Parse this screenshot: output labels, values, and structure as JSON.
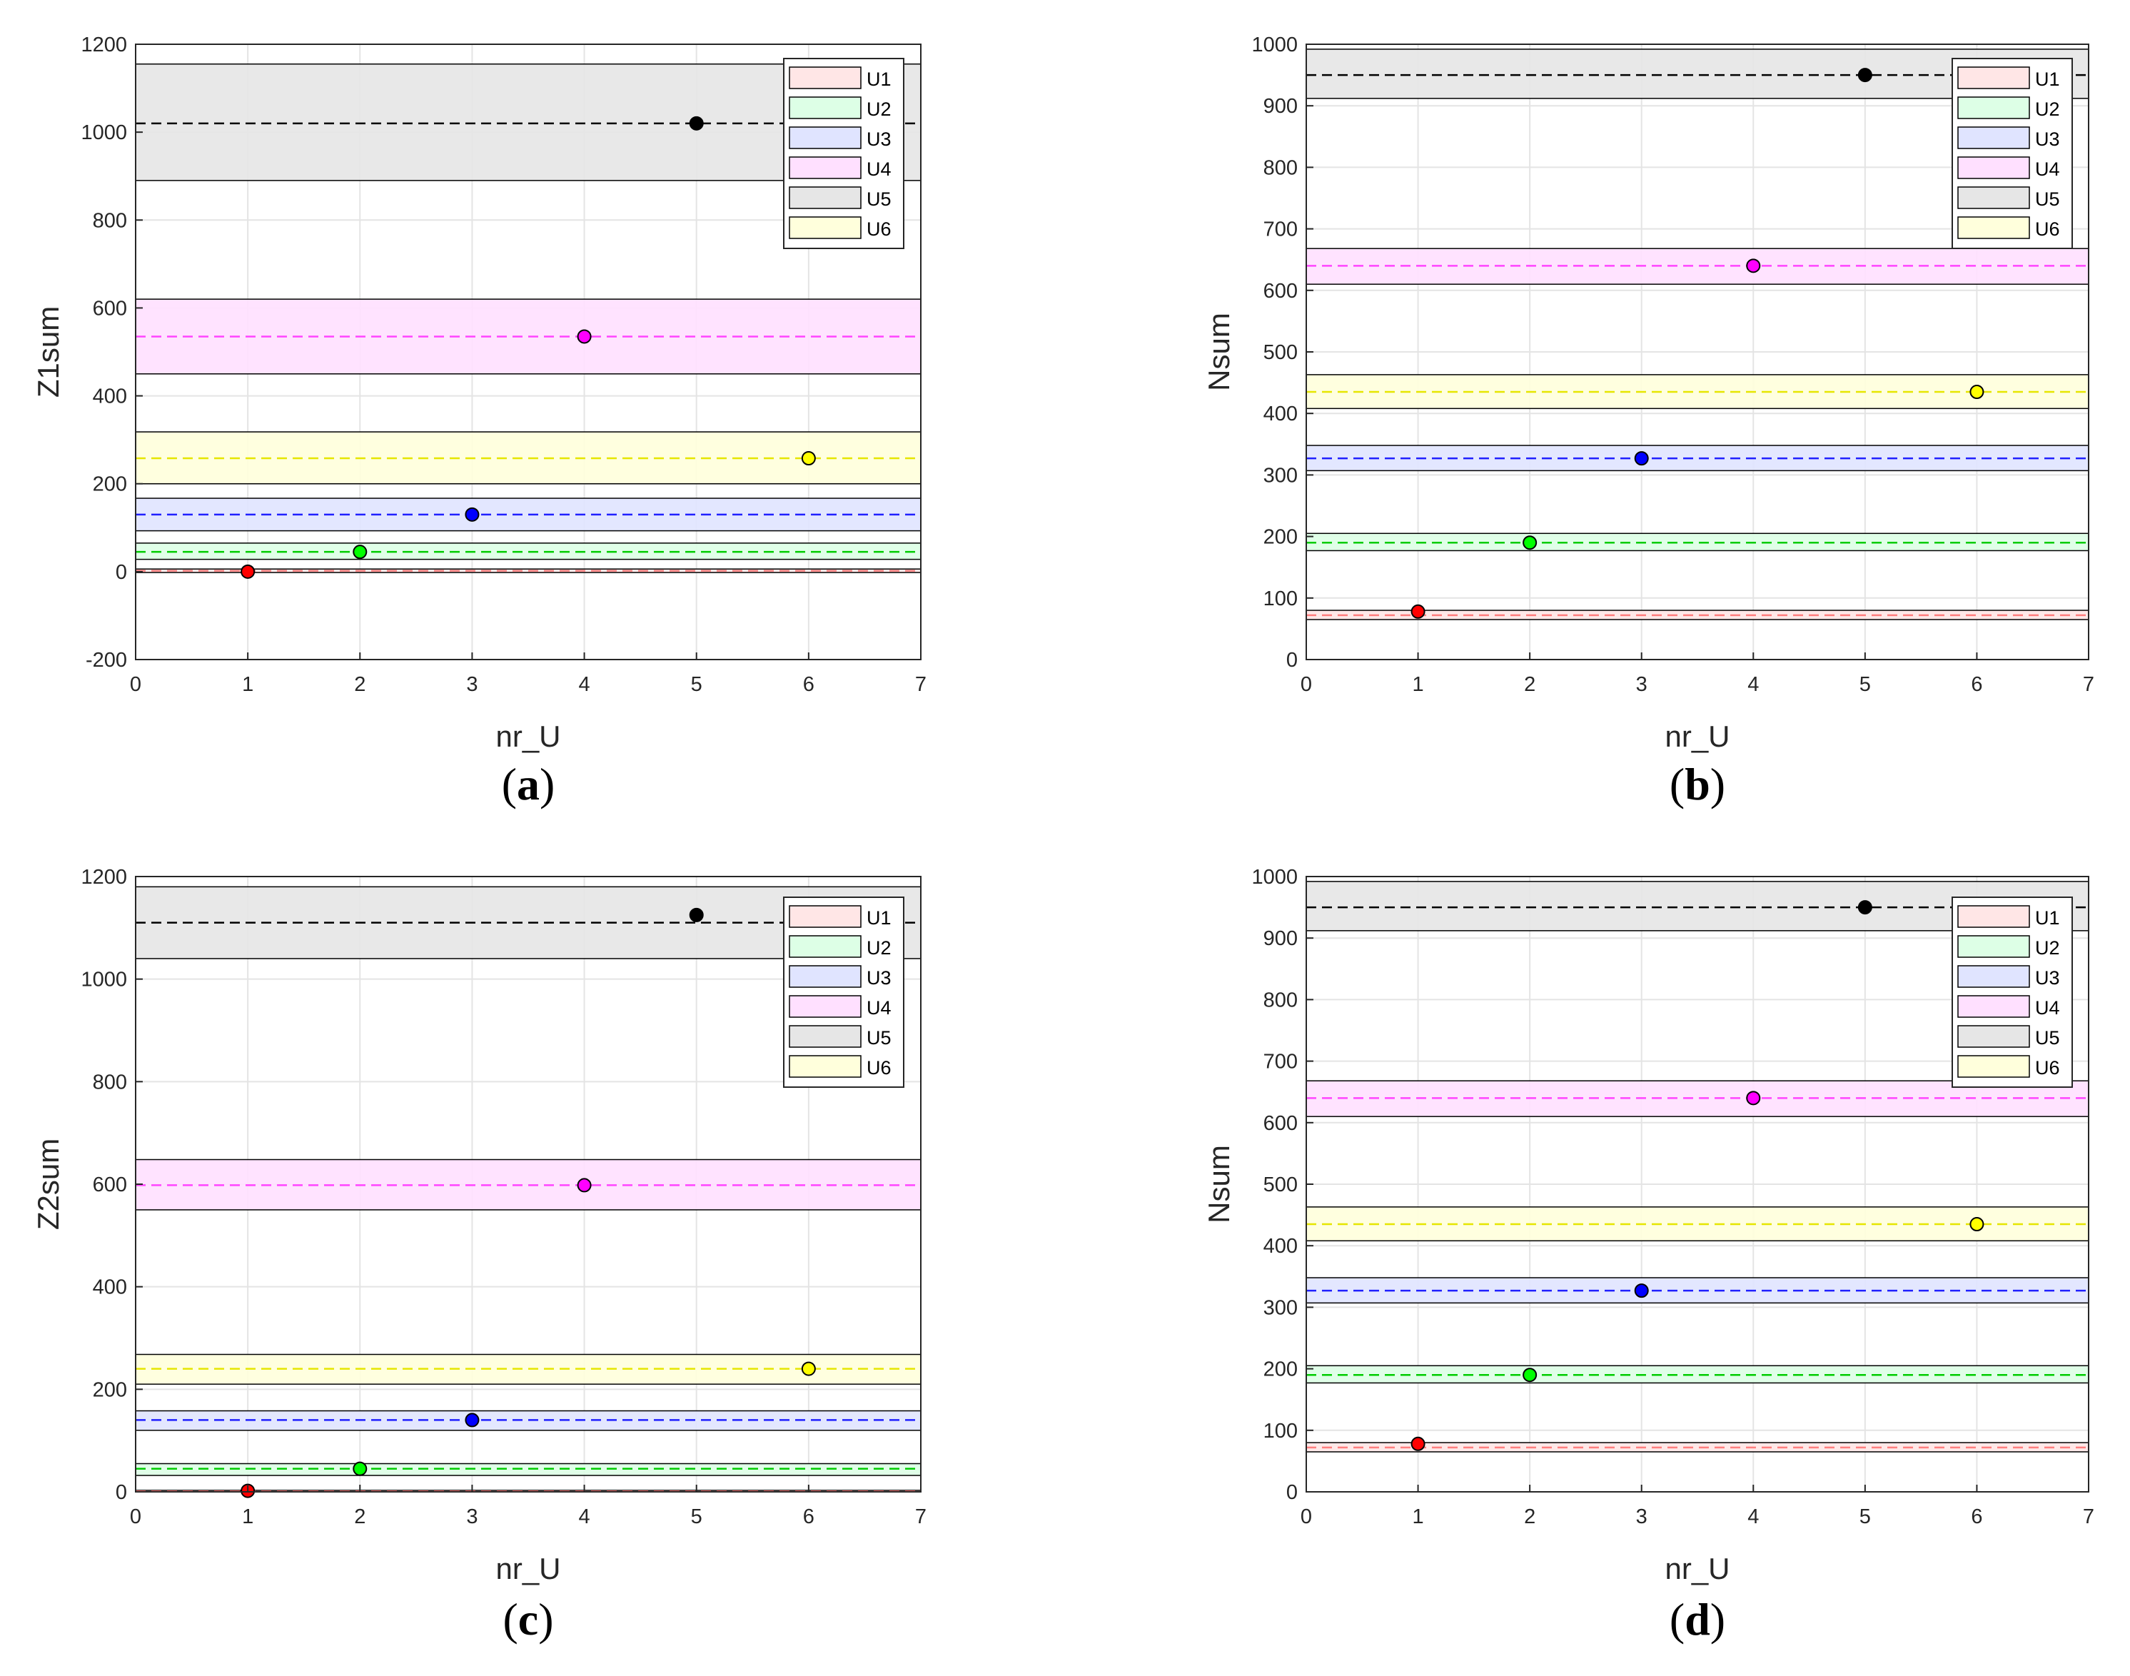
{
  "colors": {
    "U1": {
      "fill": "#ffe6e6",
      "line": "#ff7f7f",
      "marker": "#ff0000"
    },
    "U2": {
      "fill": "#ddffe6",
      "line": "#00cc00",
      "marker": "#00ff00"
    },
    "U3": {
      "fill": "#e0e4ff",
      "line": "#2020ff",
      "marker": "#0000ff"
    },
    "U4": {
      "fill": "#ffe0ff",
      "line": "#ff44ff",
      "marker": "#ff00ff"
    },
    "U5": {
      "fill": "#e6e6e6",
      "line": "#000000",
      "marker": "#000000"
    },
    "U6": {
      "fill": "#ffffdc",
      "line": "#e6e600",
      "marker": "#ffff00"
    }
  },
  "chart_data": [
    {
      "panel": "a",
      "type": "scatter",
      "xlabel": "nr_U",
      "ylabel": "Z1sum",
      "xlim": [
        0,
        7
      ],
      "ylim": [
        -200,
        1200
      ],
      "xticks": [
        0,
        1,
        2,
        3,
        4,
        5,
        6,
        7
      ],
      "yticks": [
        -200,
        0,
        200,
        400,
        600,
        800,
        1000,
        1200
      ],
      "grid": true,
      "legend_position": "top-right",
      "legend": [
        "U1",
        "U2",
        "U3",
        "U4",
        "U5",
        "U6"
      ],
      "series": [
        {
          "name": "U1",
          "x": 1,
          "y": 0,
          "mean": 2,
          "band": [
            -2,
            6
          ]
        },
        {
          "name": "U2",
          "x": 2,
          "y": 45,
          "mean": 45,
          "band": [
            28,
            65
          ]
        },
        {
          "name": "U3",
          "x": 3,
          "y": 130,
          "mean": 130,
          "band": [
            93,
            167
          ]
        },
        {
          "name": "U4",
          "x": 4,
          "y": 535,
          "mean": 535,
          "band": [
            450,
            620
          ]
        },
        {
          "name": "U5",
          "x": 5,
          "y": 1020,
          "mean": 1020,
          "band": [
            890,
            1155
          ]
        },
        {
          "name": "U6",
          "x": 6,
          "y": 258,
          "mean": 258,
          "band": [
            200,
            318
          ]
        }
      ]
    },
    {
      "panel": "b",
      "type": "scatter",
      "xlabel": "nr_U",
      "ylabel": "Nsum",
      "xlim": [
        0,
        7
      ],
      "ylim": [
        0,
        1000
      ],
      "xticks": [
        0,
        1,
        2,
        3,
        4,
        5,
        6,
        7
      ],
      "yticks": [
        0,
        100,
        200,
        300,
        400,
        500,
        600,
        700,
        800,
        900,
        1000
      ],
      "grid": true,
      "legend_position": "top-right",
      "legend": [
        "U1",
        "U2",
        "U3",
        "U4",
        "U5",
        "U6"
      ],
      "series": [
        {
          "name": "U1",
          "x": 1,
          "y": 78,
          "mean": 72,
          "band": [
            65,
            80
          ]
        },
        {
          "name": "U2",
          "x": 2,
          "y": 190,
          "mean": 190,
          "band": [
            177,
            205
          ]
        },
        {
          "name": "U3",
          "x": 3,
          "y": 327,
          "mean": 327,
          "band": [
            307,
            348
          ]
        },
        {
          "name": "U4",
          "x": 4,
          "y": 640,
          "mean": 640,
          "band": [
            610,
            668
          ]
        },
        {
          "name": "U5",
          "x": 5,
          "y": 950,
          "mean": 950,
          "band": [
            912,
            992
          ]
        },
        {
          "name": "U6",
          "x": 6,
          "y": 435,
          "mean": 435,
          "band": [
            408,
            463
          ]
        }
      ]
    },
    {
      "panel": "c",
      "type": "scatter",
      "xlabel": "nr_U",
      "ylabel": "Z2sum",
      "xlim": [
        0,
        7
      ],
      "ylim": [
        0,
        1200
      ],
      "xticks": [
        0,
        1,
        2,
        3,
        4,
        5,
        6,
        7
      ],
      "yticks": [
        0,
        200,
        400,
        600,
        800,
        1000,
        1200
      ],
      "grid": true,
      "legend_position": "top-right",
      "legend": [
        "U1",
        "U2",
        "U3",
        "U4",
        "U5",
        "U6"
      ],
      "series": [
        {
          "name": "U1",
          "x": 1,
          "y": 2,
          "mean": 1,
          "band": [
            0,
            3
          ]
        },
        {
          "name": "U2",
          "x": 2,
          "y": 45,
          "mean": 45,
          "band": [
            32,
            55
          ]
        },
        {
          "name": "U3",
          "x": 3,
          "y": 140,
          "mean": 140,
          "band": [
            120,
            158
          ]
        },
        {
          "name": "U4",
          "x": 4,
          "y": 598,
          "mean": 598,
          "band": [
            550,
            648
          ]
        },
        {
          "name": "U5",
          "x": 5,
          "y": 1125,
          "mean": 1110,
          "band": [
            1040,
            1180
          ]
        },
        {
          "name": "U6",
          "x": 6,
          "y": 240,
          "mean": 240,
          "band": [
            210,
            268
          ]
        }
      ]
    },
    {
      "panel": "d",
      "type": "scatter",
      "xlabel": "nr_U",
      "ylabel": "Nsum",
      "xlim": [
        0,
        7
      ],
      "ylim": [
        0,
        1000
      ],
      "xticks": [
        0,
        1,
        2,
        3,
        4,
        5,
        6,
        7
      ],
      "yticks": [
        0,
        100,
        200,
        300,
        400,
        500,
        600,
        700,
        800,
        900,
        1000
      ],
      "grid": true,
      "legend_position": "top-right",
      "legend": [
        "U1",
        "U2",
        "U3",
        "U4",
        "U5",
        "U6"
      ],
      "series": [
        {
          "name": "U1",
          "x": 1,
          "y": 78,
          "mean": 72,
          "band": [
            65,
            80
          ]
        },
        {
          "name": "U2",
          "x": 2,
          "y": 190,
          "mean": 190,
          "band": [
            177,
            205
          ]
        },
        {
          "name": "U3",
          "x": 3,
          "y": 327,
          "mean": 327,
          "band": [
            307,
            348
          ]
        },
        {
          "name": "U4",
          "x": 4,
          "y": 640,
          "mean": 640,
          "band": [
            610,
            668
          ]
        },
        {
          "name": "U5",
          "x": 5,
          "y": 950,
          "mean": 950,
          "band": [
            912,
            992
          ]
        },
        {
          "name": "U6",
          "x": 6,
          "y": 435,
          "mean": 435,
          "band": [
            408,
            463
          ]
        }
      ]
    }
  ]
}
